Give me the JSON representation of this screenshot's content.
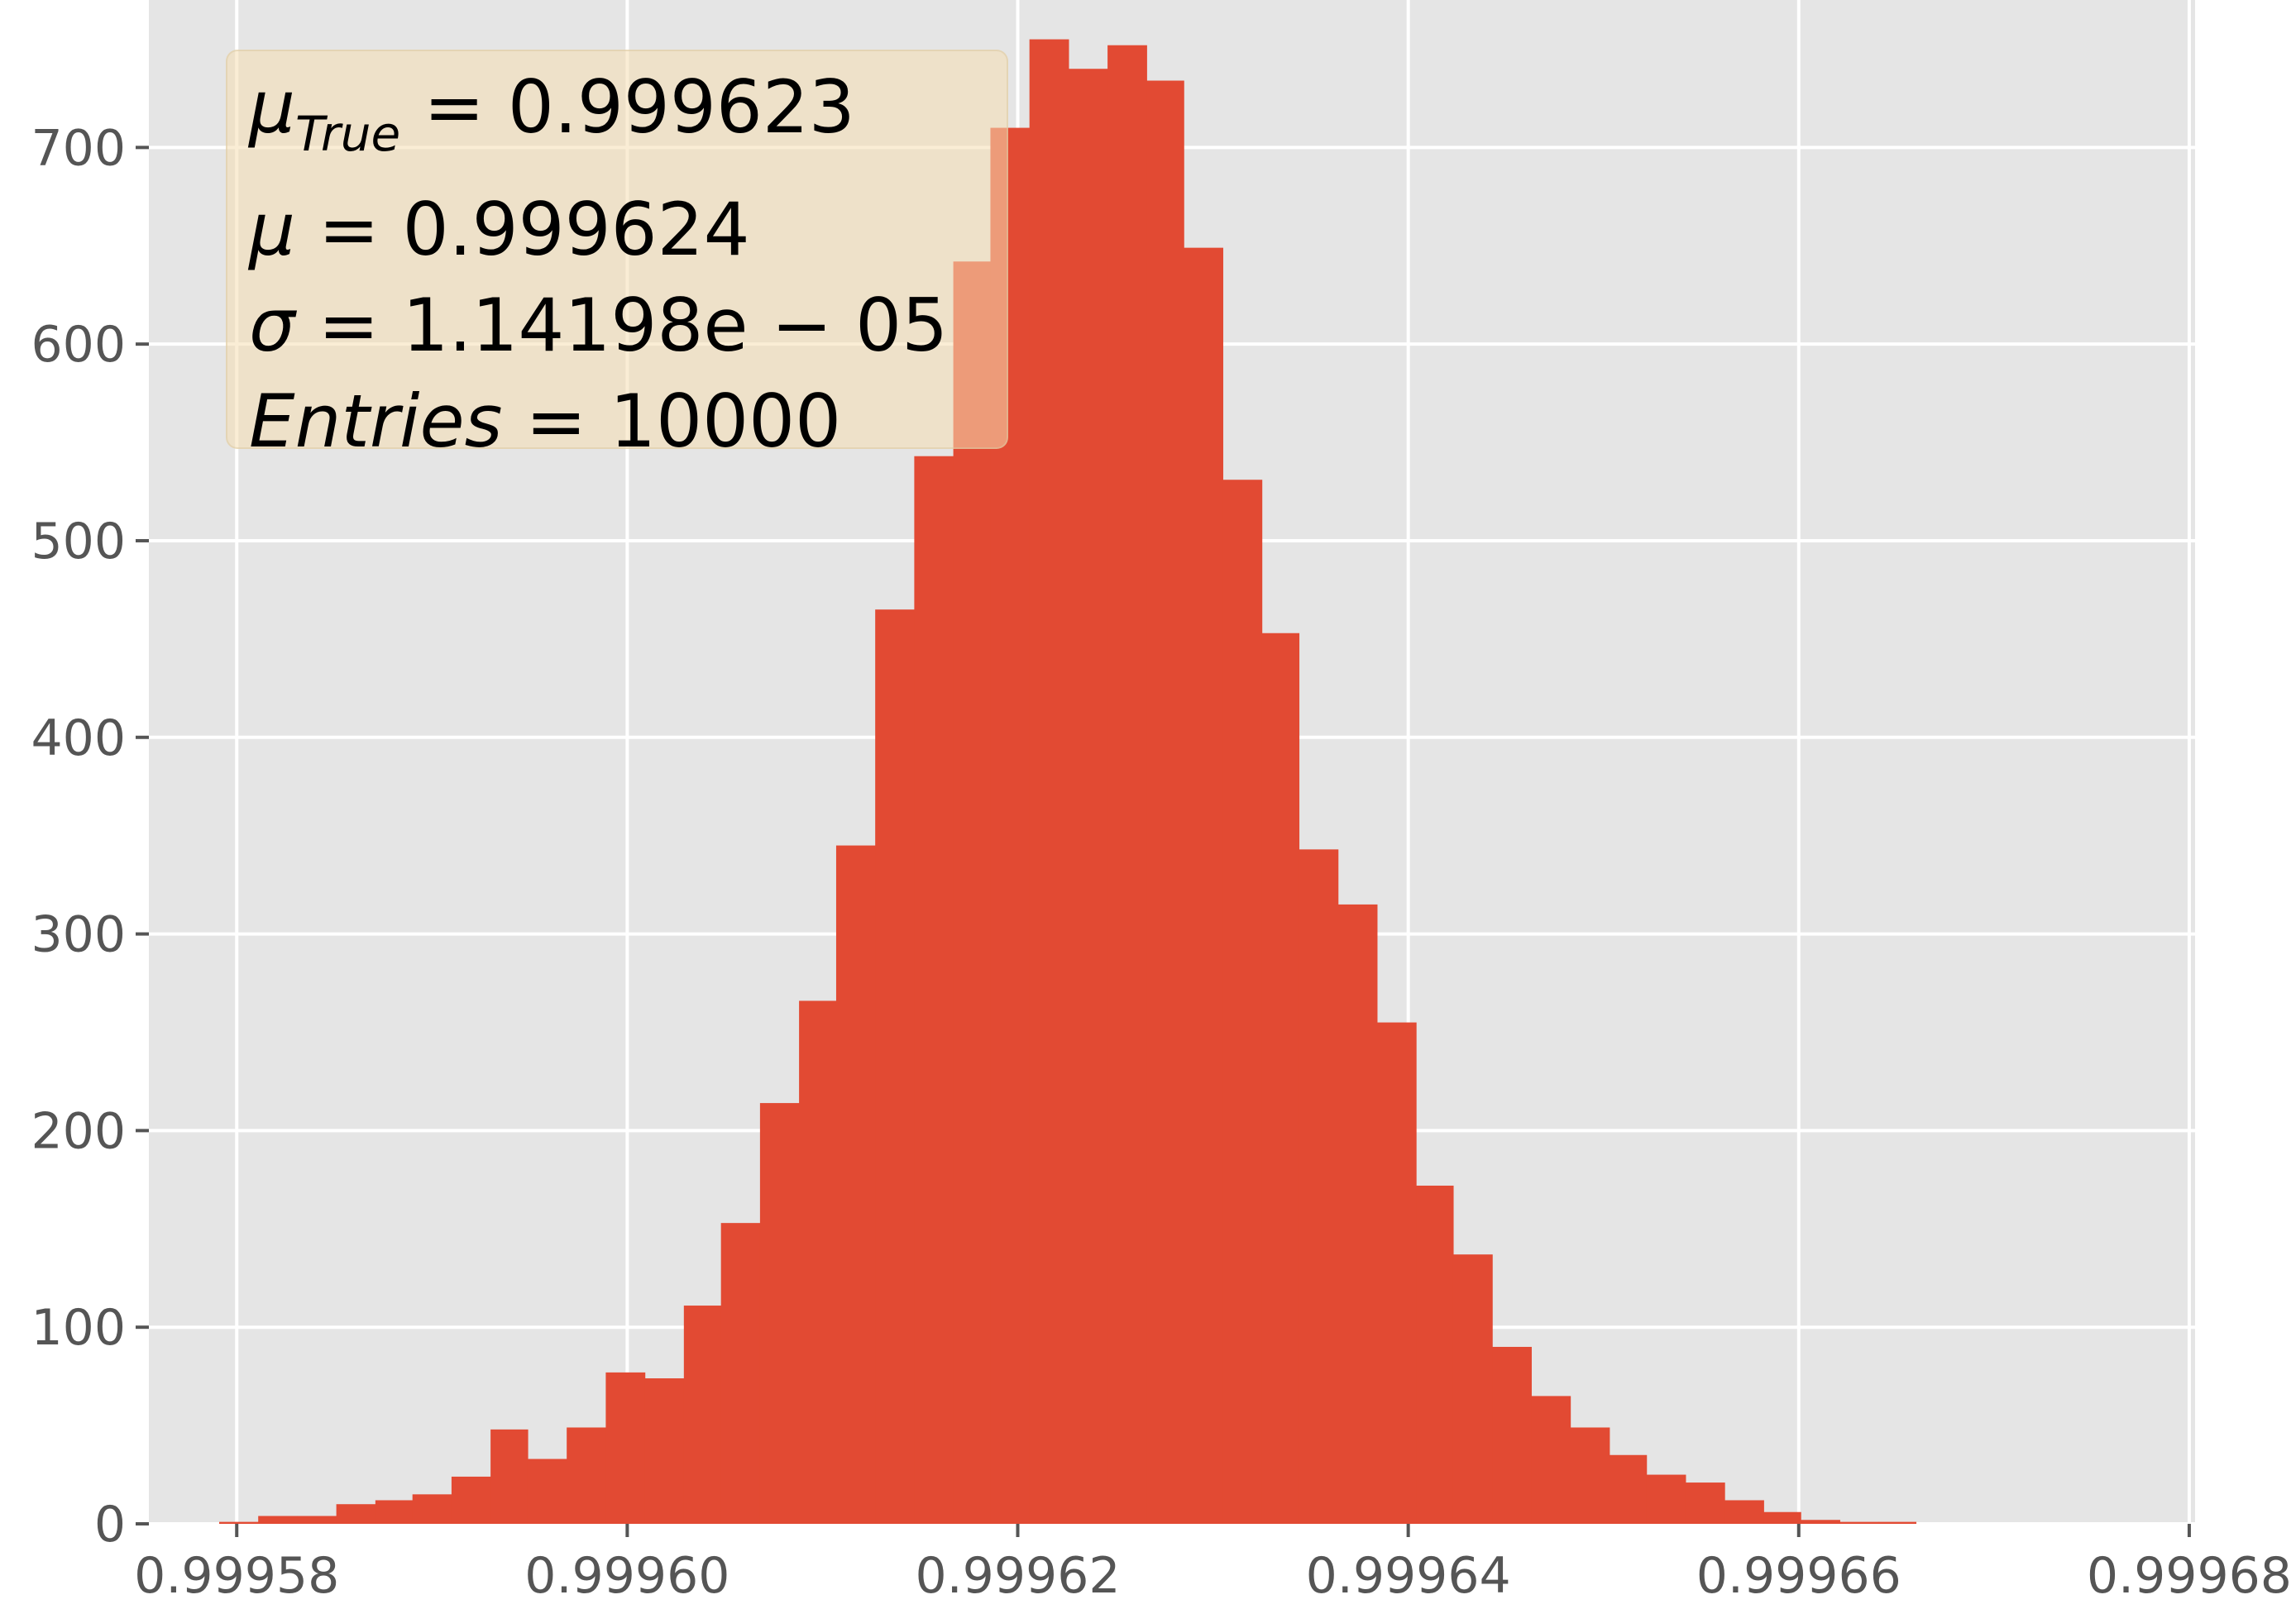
{
  "chart_data": {
    "type": "bar",
    "title": "",
    "xlabel": "",
    "ylabel": "",
    "xlim": [
      0.9995755,
      0.9996803
    ],
    "ylim": [
      0,
      775
    ],
    "grid": true,
    "x_ticks": [
      0.99958,
      0.9996,
      0.99962,
      0.99964,
      0.99966,
      0.99968
    ],
    "x_tick_labels": [
      "0.99958",
      "0.99960",
      "0.99962",
      "0.99964",
      "0.99966",
      "0.99968"
    ],
    "y_ticks": [
      0,
      100,
      200,
      300,
      400,
      500,
      600,
      700
    ],
    "y_tick_labels": [
      "0",
      "100",
      "200",
      "300",
      "400",
      "500",
      "600",
      "700"
    ],
    "bar_color": "#E24A33",
    "background_color": "#E5E5E5",
    "bin_edges": [
      0.9995791,
      0.9995811,
      0.9995831,
      0.9995851,
      0.9995871,
      0.999589,
      0.999591,
      0.999593,
      0.9995949,
      0.9995969,
      0.9995989,
      0.9996009,
      0.9996029,
      0.9996048,
      0.9996068,
      0.9996088,
      0.9996107,
      0.9996127,
      0.9996147,
      0.9996167,
      0.9996186,
      0.9996206,
      0.9996226,
      0.9996246,
      0.9996266,
      0.9996285,
      0.9996305,
      0.9996325,
      0.9996344,
      0.9996364,
      0.9996384,
      0.9996404,
      0.9996423,
      0.9996443,
      0.9996463,
      0.9996483,
      0.9996503,
      0.9996522,
      0.9996542,
      0.9996562,
      0.9996582,
      0.9996601,
      0.9996621,
      0.9996641,
      0.999666
    ],
    "values": [
      1,
      4,
      4,
      10,
      12,
      15,
      24,
      48,
      33,
      49,
      77,
      74,
      111,
      153,
      214,
      266,
      345,
      465,
      543,
      642,
      710,
      755,
      740,
      752,
      734,
      649,
      531,
      453,
      343,
      315,
      255,
      172,
      137,
      90,
      65,
      49,
      35,
      25,
      21,
      12,
      6,
      2,
      1,
      1
    ],
    "stats_box": {
      "lines": [
        {
          "symbol": "μ",
          "sub": "True",
          "text": " = 0.999623"
        },
        {
          "symbol": "μ",
          "sub": "",
          "text": " = 0.999624"
        },
        {
          "symbol": "σ",
          "sub": "",
          "text": " = 1.14198e − 05"
        },
        {
          "symbol": "Entries",
          "sub": "",
          "text": " = 10000"
        }
      ],
      "background_color": "#F5DEB3"
    }
  }
}
